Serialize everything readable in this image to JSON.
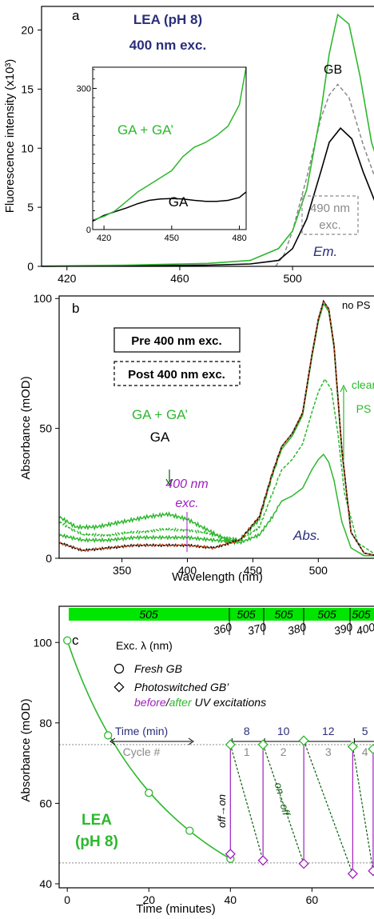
{
  "colors": {
    "green": "#2db82d",
    "bright_green": "#00e600",
    "black": "#000000",
    "gray": "#8a8a8a",
    "navy": "#2b2e7a",
    "purple": "#a020c0",
    "orange": "#e8531f",
    "darkgreen": "#0b5e0b"
  },
  "panel_a": {
    "letter": "a",
    "title_line1": "LEA (pH 8)",
    "title_line2": "400 nm exc.",
    "ylabel": "Fluorescence intensity (x10³)",
    "label_GB": "GB",
    "label_490_line1": "490 nm",
    "label_490_line2": "exc.",
    "label_em": "Em.",
    "inset_label_GA_GAp": "GA + GA’",
    "inset_label_GA": "GA",
    "inset_y_tick": "300",
    "inset_y_zero": "0",
    "inset_x_ticks": [
      "420",
      "450",
      "480"
    ]
  },
  "panel_b": {
    "letter": "b",
    "ylabel": "Absorbance (mOD)",
    "xlabel": "Wavelength (nm)",
    "label_noPS": "no PS",
    "box_pre": "Pre 400 nm exc.",
    "box_post": "Post 400 nm exc.",
    "label_GA_GAp": "GA + GA’",
    "label_GA": "GA",
    "label_exc_line1": "400 nm",
    "label_exc_line2": "exc.",
    "label_clear": "clear",
    "label_PS": "PS",
    "label_abs": "Abs."
  },
  "panel_c": {
    "letter": "c",
    "ylabel": "Absorbance (mOD)",
    "xlabel": "Time (minutes)",
    "bar_labels": [
      "505",
      "505",
      "505",
      "505",
      "505"
    ],
    "exc_label": "Exc. λ (nm)",
    "exc_values": [
      "360",
      "370",
      "380",
      "390",
      "400"
    ],
    "legend_fresh": "Fresh GB",
    "legend_switched": "Photoswitched GB’",
    "legend_before": "before",
    "legend_slash": "/",
    "legend_after": "after",
    "legend_uv": "UV excitations",
    "time_header": "Time (min)",
    "cycle_header": "Cycle #",
    "times": [
      "8",
      "10",
      "12",
      "5"
    ],
    "cycles": [
      "1",
      "2",
      "3",
      "4"
    ],
    "label_off_on": "off→on",
    "label_on_off": "on→off",
    "label_LEA_line1": "LEA",
    "label_LEA_line2": "(pH 8)"
  },
  "chart_data": [
    {
      "type": "line",
      "title": "",
      "xlabel": "",
      "ylabel": "Fluorescence intensity (x10³)",
      "xlim": [
        411,
        530
      ],
      "ylim": [
        0,
        22
      ],
      "x_ticks": [
        420,
        460,
        500
      ],
      "y_ticks": [
        0,
        5,
        10,
        15,
        20
      ],
      "series": [
        {
          "name": "GA + GA’",
          "points": [
            [
              411,
              0.02
            ],
            [
              440,
              0.1
            ],
            [
              470,
              0.25
            ],
            [
              485,
              0.5
            ],
            [
              495,
              1.5
            ],
            [
              500,
              3
            ],
            [
              505,
              6.5
            ],
            [
              510,
              13
            ],
            [
              513,
              18
            ],
            [
              516,
              21.3
            ],
            [
              520,
              20.5
            ],
            [
              524,
              16
            ],
            [
              528,
              10.5
            ],
            [
              530,
              9
            ]
          ]
        },
        {
          "name": "GA",
          "points": [
            [
              411,
              0.01
            ],
            [
              440,
              0.05
            ],
            [
              470,
              0.1
            ],
            [
              485,
              0.2
            ],
            [
              495,
              0.5
            ],
            [
              500,
              1.5
            ],
            [
              505,
              4
            ],
            [
              510,
              8
            ],
            [
              513,
              10.5
            ],
            [
              517,
              11.7
            ],
            [
              521,
              10.8
            ],
            [
              525,
              8
            ],
            [
              530,
              5
            ]
          ]
        },
        {
          "name": "490 nm exc.",
          "points": [
            [
              494,
              0
            ],
            [
              497,
              1
            ],
            [
              500,
              3
            ],
            [
              505,
              7.5
            ],
            [
              510,
              12.5
            ],
            [
              513,
              14.5
            ],
            [
              516,
              15.4
            ],
            [
              520,
              14.3
            ],
            [
              525,
              10.3
            ],
            [
              530,
              7
            ]
          ]
        }
      ]
    },
    {
      "type": "line",
      "title": "",
      "xlabel": "",
      "ylabel": "",
      "xlim": [
        415,
        483
      ],
      "ylim": [
        0,
        345
      ],
      "x_ticks": [
        420,
        450,
        480
      ],
      "y_ticks": [
        0,
        300
      ],
      "series": [
        {
          "name": "GA + GA’",
          "points": [
            [
              415,
              20
            ],
            [
              420,
              28
            ],
            [
              425,
              40
            ],
            [
              430,
              60
            ],
            [
              435,
              80
            ],
            [
              440,
              95
            ],
            [
              445,
              110
            ],
            [
              450,
              125
            ],
            [
              455,
              155
            ],
            [
              460,
              175
            ],
            [
              465,
              185
            ],
            [
              470,
              200
            ],
            [
              475,
              220
            ],
            [
              480,
              265
            ],
            [
              483,
              345
            ]
          ]
        },
        {
          "name": "GA",
          "points": [
            [
              415,
              18
            ],
            [
              420,
              30
            ],
            [
              425,
              38
            ],
            [
              430,
              46
            ],
            [
              435,
              55
            ],
            [
              440,
              62
            ],
            [
              445,
              65
            ],
            [
              450,
              66
            ],
            [
              455,
              65
            ],
            [
              460,
              62
            ],
            [
              465,
              60
            ],
            [
              470,
              60
            ],
            [
              475,
              62
            ],
            [
              480,
              68
            ],
            [
              483,
              80
            ]
          ]
        }
      ]
    },
    {
      "type": "line",
      "title": "",
      "xlabel": "Wavelength (nm)",
      "ylabel": "Absorbance (mOD)",
      "xlim": [
        302,
        545
      ],
      "ylim": [
        0,
        101
      ],
      "x_ticks": [
        350,
        400,
        450,
        500
      ],
      "y_ticks": [
        0,
        50,
        100
      ],
      "series": [
        {
          "name": "no PS (Pre, GA)",
          "points": [
            [
              302,
              6
            ],
            [
              320,
              3
            ],
            [
              340,
              4
            ],
            [
              360,
              5
            ],
            [
              380,
              5
            ],
            [
              400,
              5
            ],
            [
              420,
              4
            ],
            [
              440,
              7
            ],
            [
              455,
              16
            ],
            [
              465,
              33
            ],
            [
              472,
              43
            ],
            [
              480,
              48
            ],
            [
              488,
              56
            ],
            [
              495,
              78
            ],
            [
              500,
              92
            ],
            [
              504,
              99
            ],
            [
              508,
              96
            ],
            [
              512,
              82
            ],
            [
              518,
              42
            ],
            [
              525,
              10
            ],
            [
              535,
              2
            ],
            [
              545,
              1
            ]
          ]
        },
        {
          "name": "GA + GA’ pre",
          "points": [
            [
              302,
              16
            ],
            [
              315,
              12
            ],
            [
              330,
              12
            ],
            [
              350,
              14
            ],
            [
              370,
              16
            ],
            [
              385,
              17
            ],
            [
              400,
              15
            ],
            [
              415,
              11
            ],
            [
              430,
              7
            ],
            [
              440,
              7
            ],
            [
              455,
              15
            ],
            [
              465,
              32
            ],
            [
              472,
              42
            ],
            [
              480,
              47
            ],
            [
              488,
              55
            ],
            [
              495,
              77
            ],
            [
              500,
              91
            ],
            [
              504,
              98
            ],
            [
              508,
              95
            ],
            [
              512,
              81
            ],
            [
              518,
              41
            ],
            [
              525,
              10
            ],
            [
              535,
              2
            ],
            [
              545,
              1
            ]
          ]
        },
        {
          "name": "clear PS (post, dashed)",
          "points": [
            [
              302,
              14
            ],
            [
              320,
              9
            ],
            [
              340,
              9
            ],
            [
              360,
              10
            ],
            [
              380,
              11
            ],
            [
              400,
              11
            ],
            [
              420,
              9
            ],
            [
              440,
              7
            ],
            [
              455,
              12
            ],
            [
              465,
              25
            ],
            [
              472,
              34
            ],
            [
              480,
              38
            ],
            [
              488,
              44
            ],
            [
              495,
              56
            ],
            [
              500,
              64
            ],
            [
              505,
              69
            ],
            [
              510,
              65
            ],
            [
              515,
              48
            ],
            [
              520,
              25
            ],
            [
              530,
              6
            ],
            [
              545,
              1
            ]
          ]
        },
        {
          "name": "PS (post, solid)",
          "points": [
            [
              302,
              9
            ],
            [
              320,
              7
            ],
            [
              340,
              7
            ],
            [
              360,
              8
            ],
            [
              380,
              8
            ],
            [
              400,
              8
            ],
            [
              420,
              7
            ],
            [
              440,
              6
            ],
            [
              455,
              9
            ],
            [
              465,
              16
            ],
            [
              472,
              22
            ],
            [
              480,
              24
            ],
            [
              488,
              27
            ],
            [
              495,
              34
            ],
            [
              500,
              38
            ],
            [
              504,
              40
            ],
            [
              508,
              37
            ],
            [
              512,
              30
            ],
            [
              518,
              14
            ],
            [
              525,
              4
            ],
            [
              535,
              1
            ],
            [
              545,
              1
            ]
          ]
        }
      ]
    },
    {
      "type": "scatter",
      "title": "",
      "xlabel": "Time (minutes)",
      "ylabel": "Absorbance (mOD)",
      "xlim": [
        -2,
        76
      ],
      "ylim": [
        39,
        109
      ],
      "x_ticks": [
        0,
        20,
        40,
        60
      ],
      "y_ticks": [
        40,
        60,
        80,
        100
      ],
      "dotted_levels": [
        74.6,
        45.2
      ],
      "fresh_gb": [
        [
          0,
          100.5
        ],
        [
          10,
          76.9
        ],
        [
          20,
          62.6
        ],
        [
          30,
          53.2
        ],
        [
          40,
          46.2
        ]
      ],
      "switched_before": [
        [
          40,
          47.4
        ],
        [
          48,
          45.8
        ],
        [
          58,
          45.0
        ],
        [
          70,
          42.5
        ],
        [
          75,
          43.2
        ]
      ],
      "switched_after": [
        [
          40,
          74.6
        ],
        [
          48,
          74.6
        ],
        [
          58,
          75.6
        ],
        [
          70,
          74.1
        ],
        [
          75,
          73.5
        ]
      ]
    }
  ]
}
